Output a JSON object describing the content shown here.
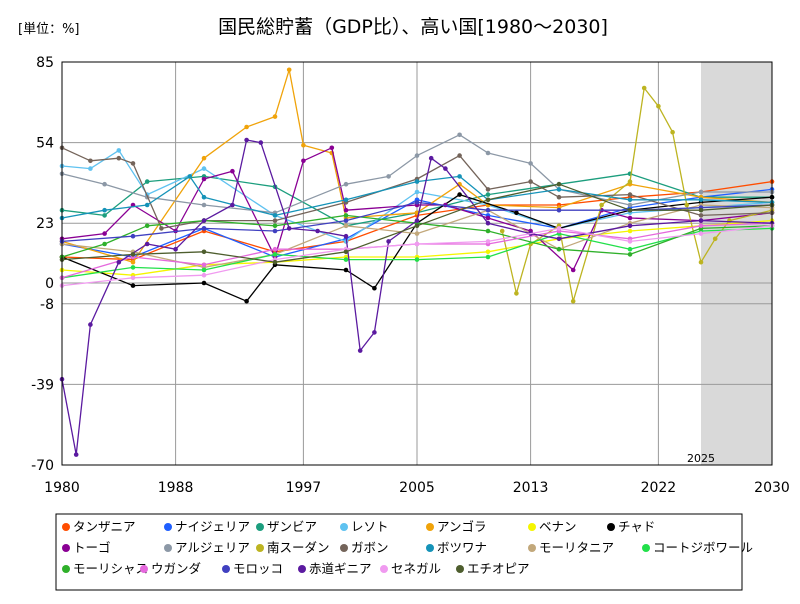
{
  "unit_label": "[単位：%]",
  "chart_data": {
    "type": "line",
    "title": "国民総貯蓄（GDP比）、高い国[1980〜2030]",
    "xlabel": "",
    "ylabel": "",
    "xlim": [
      1980,
      2030
    ],
    "ylim": [
      -70,
      85
    ],
    "x_ticks": [
      "1980",
      "1988",
      "1997",
      "2005",
      "2013",
      "2022",
      "2030"
    ],
    "y_ticks": [
      "85",
      "54",
      "23",
      "0",
      "-8",
      "-39",
      "-70"
    ],
    "forecast_start": 2025,
    "forecast_label": "2025",
    "grid": true,
    "legend_position": "bottom",
    "series": [
      {
        "name": "タンザニア",
        "color": "#ff4d00",
        "values": [
          [
            1980,
            10
          ],
          [
            1985,
            9
          ],
          [
            1990,
            20
          ],
          [
            1995,
            12
          ],
          [
            2000,
            16
          ],
          [
            2005,
            26
          ],
          [
            2010,
            30
          ],
          [
            2015,
            30
          ],
          [
            2020,
            33
          ],
          [
            2025,
            35
          ],
          [
            2030,
            39
          ]
        ]
      },
      {
        "name": "ナイジェリア",
        "color": "#1f5fff",
        "values": [
          [
            1980,
            15
          ],
          [
            1985,
            10
          ],
          [
            1990,
            21
          ],
          [
            1995,
            10
          ],
          [
            2000,
            17
          ],
          [
            2005,
            32
          ],
          [
            2010,
            26
          ],
          [
            2015,
            21
          ],
          [
            2020,
            29
          ],
          [
            2025,
            33
          ],
          [
            2030,
            36
          ]
        ]
      },
      {
        "name": "ザンビア",
        "color": "#1c9e7e",
        "values": [
          [
            1980,
            28
          ],
          [
            1983,
            26
          ],
          [
            1986,
            39
          ],
          [
            1990,
            41
          ],
          [
            1995,
            37
          ],
          [
            2000,
            22
          ],
          [
            2005,
            27
          ],
          [
            2010,
            34
          ],
          [
            2015,
            38
          ],
          [
            2020,
            42
          ],
          [
            2025,
            33
          ],
          [
            2030,
            33
          ]
        ]
      },
      {
        "name": "レソト",
        "color": "#5fc2f0",
        "values": [
          [
            1980,
            45
          ],
          [
            1982,
            44
          ],
          [
            1984,
            51
          ],
          [
            1986,
            34
          ],
          [
            1990,
            44
          ],
          [
            1995,
            26
          ],
          [
            2000,
            16
          ],
          [
            2005,
            35
          ],
          [
            2010,
            30
          ],
          [
            2015,
            21
          ],
          [
            2020,
            27
          ],
          [
            2025,
            29
          ],
          [
            2030,
            31
          ]
        ]
      },
      {
        "name": "アンゴラ",
        "color": "#f0a30a",
        "values": [
          [
            1980,
            16
          ],
          [
            1985,
            8
          ],
          [
            1990,
            48
          ],
          [
            1993,
            60
          ],
          [
            1995,
            64
          ],
          [
            1996,
            82
          ],
          [
            1997,
            53
          ],
          [
            1999,
            50
          ],
          [
            2000,
            25
          ],
          [
            2005,
            27
          ],
          [
            2008,
            38
          ],
          [
            2010,
            30
          ],
          [
            2015,
            29
          ],
          [
            2020,
            38
          ],
          [
            2025,
            33
          ],
          [
            2030,
            31
          ]
        ]
      },
      {
        "name": "ベナン",
        "color": "#f5f500",
        "values": [
          [
            1980,
            5
          ],
          [
            1985,
            3
          ],
          [
            1990,
            7
          ],
          [
            1995,
            8
          ],
          [
            2000,
            10
          ],
          [
            2005,
            10
          ],
          [
            2010,
            12
          ],
          [
            2015,
            17
          ],
          [
            2020,
            20
          ],
          [
            2025,
            22
          ],
          [
            2030,
            24
          ]
        ]
      },
      {
        "name": "チャド",
        "color": "#000000",
        "values": [
          [
            1980,
            10
          ],
          [
            1985,
            -1
          ],
          [
            1990,
            0
          ],
          [
            1993,
            -7
          ],
          [
            1995,
            7
          ],
          [
            2000,
            5
          ],
          [
            2002,
            -2
          ],
          [
            2005,
            23
          ],
          [
            2008,
            34
          ],
          [
            2012,
            27
          ],
          [
            2015,
            21
          ],
          [
            2020,
            28
          ],
          [
            2025,
            31
          ],
          [
            2030,
            33
          ]
        ]
      },
      {
        "name": "トーゴ",
        "color": "#8a0094",
        "values": [
          [
            1980,
            17
          ],
          [
            1983,
            19
          ],
          [
            1985,
            30
          ],
          [
            1988,
            20
          ],
          [
            1990,
            40
          ],
          [
            1992,
            43
          ],
          [
            1995,
            10
          ],
          [
            1997,
            47
          ],
          [
            1999,
            52
          ],
          [
            2000,
            28
          ],
          [
            2005,
            30
          ],
          [
            2007,
            30
          ],
          [
            2010,
            25
          ],
          [
            2013,
            20
          ],
          [
            2016,
            5
          ],
          [
            2018,
            28
          ],
          [
            2020,
            25
          ],
          [
            2025,
            24
          ],
          [
            2030,
            27
          ]
        ]
      },
      {
        "name": "アルジェリア",
        "color": "#8c98a6",
        "values": [
          [
            1980,
            42
          ],
          [
            1983,
            38
          ],
          [
            1986,
            33
          ],
          [
            1990,
            30
          ],
          [
            1995,
            27
          ],
          [
            2000,
            38
          ],
          [
            2003,
            41
          ],
          [
            2005,
            49
          ],
          [
            2008,
            57
          ],
          [
            2010,
            50
          ],
          [
            2013,
            46
          ],
          [
            2015,
            36
          ],
          [
            2020,
            30
          ],
          [
            2025,
            35
          ],
          [
            2030,
            35
          ]
        ]
      },
      {
        "name": "南スーダン",
        "color": "#bdb421",
        "values": [
          [
            2011,
            20
          ],
          [
            2012,
            -4
          ],
          [
            2013,
            15
          ],
          [
            2015,
            22
          ],
          [
            2016,
            -7
          ],
          [
            2018,
            30
          ],
          [
            2020,
            39
          ],
          [
            2021,
            75
          ],
          [
            2022,
            68
          ],
          [
            2023,
            58
          ],
          [
            2024,
            30
          ],
          [
            2025,
            8
          ],
          [
            2026,
            17
          ],
          [
            2027,
            24
          ],
          [
            2030,
            28
          ]
        ]
      },
      {
        "name": "ガボン",
        "color": "#74645a",
        "values": [
          [
            1980,
            52
          ],
          [
            1982,
            47
          ],
          [
            1984,
            48
          ],
          [
            1985,
            46
          ],
          [
            1987,
            21
          ],
          [
            1990,
            24
          ],
          [
            1995,
            24
          ],
          [
            2000,
            31
          ],
          [
            2005,
            40
          ],
          [
            2008,
            49
          ],
          [
            2010,
            36
          ],
          [
            2013,
            39
          ],
          [
            2015,
            33
          ],
          [
            2020,
            34
          ],
          [
            2025,
            26
          ],
          [
            2030,
            27
          ]
        ]
      },
      {
        "name": "ボツワナ",
        "color": "#1593b8",
        "values": [
          [
            1980,
            25
          ],
          [
            1983,
            28
          ],
          [
            1986,
            30
          ],
          [
            1989,
            41
          ],
          [
            1990,
            33
          ],
          [
            1995,
            26
          ],
          [
            2000,
            32
          ],
          [
            2005,
            39
          ],
          [
            2008,
            41
          ],
          [
            2010,
            32
          ],
          [
            2015,
            36
          ],
          [
            2020,
            32
          ],
          [
            2025,
            32
          ],
          [
            2030,
            31
          ]
        ]
      },
      {
        "name": "モーリタニア",
        "color": "#c2a87b",
        "values": [
          [
            1980,
            15
          ],
          [
            1985,
            12
          ],
          [
            1990,
            6
          ],
          [
            1995,
            11
          ],
          [
            2000,
            22
          ],
          [
            2005,
            19
          ],
          [
            2010,
            28
          ],
          [
            2015,
            13
          ],
          [
            2020,
            23
          ],
          [
            2025,
            30
          ],
          [
            2030,
            29
          ]
        ]
      },
      {
        "name": "コートジボワール",
        "color": "#22e04a",
        "values": [
          [
            1980,
            2
          ],
          [
            1985,
            6
          ],
          [
            1990,
            5
          ],
          [
            1995,
            11
          ],
          [
            2000,
            9
          ],
          [
            2005,
            9
          ],
          [
            2010,
            10
          ],
          [
            2015,
            19
          ],
          [
            2020,
            13
          ],
          [
            2025,
            20
          ],
          [
            2030,
            21
          ]
        ]
      },
      {
        "name": "モーリシャス",
        "color": "#2fb02a",
        "values": [
          [
            1980,
            10
          ],
          [
            1983,
            15
          ],
          [
            1986,
            22
          ],
          [
            1990,
            24
          ],
          [
            1995,
            22
          ],
          [
            2000,
            26
          ],
          [
            2005,
            23
          ],
          [
            2010,
            20
          ],
          [
            2015,
            13
          ],
          [
            2020,
            11
          ],
          [
            2025,
            21
          ],
          [
            2030,
            22
          ]
        ]
      },
      {
        "name": "ウガンダ",
        "color": "#e569dd",
        "values": [
          [
            1980,
            2
          ],
          [
            1985,
            10
          ],
          [
            1990,
            7
          ],
          [
            1995,
            13
          ],
          [
            2000,
            13
          ],
          [
            2005,
            15
          ],
          [
            2010,
            15
          ],
          [
            2015,
            20
          ],
          [
            2020,
            17
          ],
          [
            2025,
            22
          ],
          [
            2030,
            23
          ]
        ]
      },
      {
        "name": "モロッコ",
        "color": "#4040c0",
        "values": [
          [
            1980,
            16
          ],
          [
            1985,
            18
          ],
          [
            1990,
            21
          ],
          [
            1995,
            20
          ],
          [
            2000,
            24
          ],
          [
            2005,
            31
          ],
          [
            2010,
            28
          ],
          [
            2015,
            28
          ],
          [
            2020,
            28
          ],
          [
            2025,
            29
          ],
          [
            2030,
            30
          ]
        ]
      },
      {
        "name": "赤道ギニア",
        "color": "#5b1aa0",
        "values": [
          [
            1980,
            -37
          ],
          [
            1981,
            -66
          ],
          [
            1982,
            -16
          ],
          [
            1984,
            8
          ],
          [
            1986,
            15
          ],
          [
            1988,
            13
          ],
          [
            1990,
            24
          ],
          [
            1992,
            30
          ],
          [
            1993,
            55
          ],
          [
            1994,
            54
          ],
          [
            1996,
            21
          ],
          [
            1998,
            20
          ],
          [
            2000,
            18
          ],
          [
            2001,
            -26
          ],
          [
            2002,
            -19
          ],
          [
            2003,
            16
          ],
          [
            2005,
            24
          ],
          [
            2006,
            48
          ],
          [
            2007,
            44
          ],
          [
            2010,
            23
          ],
          [
            2013,
            19
          ],
          [
            2015,
            17
          ],
          [
            2020,
            22
          ],
          [
            2025,
            24
          ],
          [
            2030,
            23
          ]
        ]
      },
      {
        "name": "セネガル",
        "color": "#f09af0",
        "values": [
          [
            1980,
            -1
          ],
          [
            1985,
            2
          ],
          [
            1990,
            3
          ],
          [
            1995,
            9
          ],
          [
            2000,
            13
          ],
          [
            2005,
            15
          ],
          [
            2010,
            16
          ],
          [
            2015,
            21
          ],
          [
            2020,
            16
          ],
          [
            2025,
            19
          ],
          [
            2030,
            22
          ]
        ]
      },
      {
        "name": "エチオピア",
        "color": "#4e5e2e",
        "values": [
          [
            1980,
            9
          ],
          [
            1985,
            11
          ],
          [
            1990,
            12
          ],
          [
            1995,
            8
          ],
          [
            2000,
            12
          ],
          [
            2005,
            22
          ],
          [
            2010,
            32
          ],
          [
            2015,
            38
          ],
          [
            2020,
            28
          ],
          [
            2025,
            28
          ],
          [
            2030,
            30
          ]
        ]
      }
    ]
  }
}
